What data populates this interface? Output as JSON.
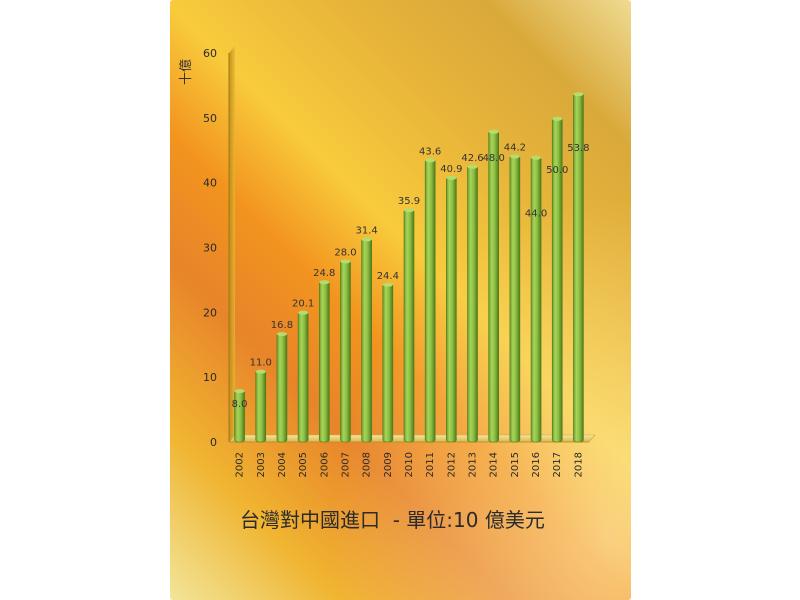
{
  "chart_data": {
    "type": "bar",
    "title": "台灣對中國進口  - 單位:10 億美元",
    "ylabel": "十億",
    "xlabel": "",
    "ylim": [
      0,
      60
    ],
    "yticks": [
      0,
      10,
      20,
      30,
      40,
      50,
      60
    ],
    "grid": false,
    "legend": "none",
    "bar_color": "#8cbf3c",
    "categories": [
      "2002",
      "2003",
      "2004",
      "2005",
      "2006",
      "2007",
      "2008",
      "2009",
      "2010",
      "2011",
      "2012",
      "2013",
      "2014",
      "2015",
      "2016",
      "2017",
      "2018"
    ],
    "values": [
      8.0,
      11.0,
      16.8,
      20.1,
      24.8,
      28.0,
      31.4,
      24.4,
      35.9,
      43.6,
      40.9,
      42.6,
      48.0,
      44.2,
      44.0,
      50.0,
      53.8
    ],
    "data_labels": [
      "8.0",
      "11.0",
      "16.8",
      "20.1",
      "24.8",
      "28.0",
      "31.4",
      "24.4",
      "35.9",
      "43.6",
      "40.9",
      "42.6",
      "48.0",
      "44.2",
      "44.0",
      "50.0",
      "53.8"
    ]
  }
}
